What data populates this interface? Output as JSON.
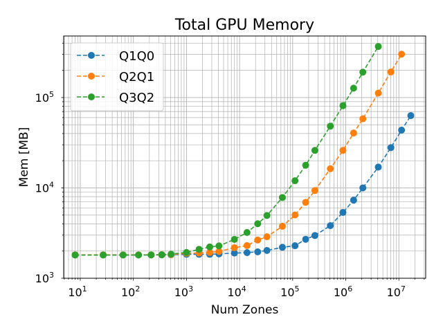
{
  "chart_data": {
    "type": "line",
    "title": "Total GPU Memory",
    "xlabel": "Num Zones",
    "ylabel": "Mem [MB]",
    "xscale": "log",
    "yscale": "log",
    "xlim": [
      4.87,
      32000000
    ],
    "ylim": [
      1000,
      480000
    ],
    "grid": {
      "major": true,
      "minor": true
    },
    "legend_position": "top-left",
    "x_ticks": [
      {
        "value": 10,
        "base": "10",
        "exp": "1"
      },
      {
        "value": 100,
        "base": "10",
        "exp": "2"
      },
      {
        "value": 1000,
        "base": "10",
        "exp": "3"
      },
      {
        "value": 10000,
        "base": "10",
        "exp": "4"
      },
      {
        "value": 100000,
        "base": "10",
        "exp": "5"
      },
      {
        "value": 1000000,
        "base": "10",
        "exp": "6"
      },
      {
        "value": 10000000,
        "base": "10",
        "exp": "7"
      }
    ],
    "y_ticks": [
      {
        "value": 1000,
        "base": "10",
        "exp": "3"
      },
      {
        "value": 10000,
        "base": "10",
        "exp": "4"
      },
      {
        "value": 100000,
        "base": "10",
        "exp": "5"
      }
    ],
    "series": [
      {
        "name": "Q1Q0",
        "color": "#1f77b4",
        "x": [
          8,
          27,
          64,
          125,
          216,
          343,
          512,
          1000,
          1728,
          2744,
          4096,
          8000,
          13824,
          21952,
          32768,
          64000,
          110592,
          175616,
          262144,
          512000,
          884736,
          1404928,
          2097152,
          4096000,
          7077888,
          11239424,
          16777216
        ],
        "y": [
          1810,
          1810,
          1810,
          1810,
          1810,
          1815,
          1820,
          1840,
          1840,
          1840,
          1860,
          1900,
          1920,
          1960,
          2030,
          2200,
          2290,
          2700,
          2970,
          3820,
          5350,
          7310,
          10000,
          17000,
          27900,
          43600,
          63100
        ]
      },
      {
        "name": "Q2Q1",
        "color": "#ff7f0e",
        "x": [
          8,
          27,
          64,
          125,
          216,
          343,
          512,
          1000,
          1728,
          2744,
          4096,
          8000,
          13824,
          21952,
          32768,
          64000,
          110592,
          175616,
          262144,
          512000,
          884736,
          1404928,
          2097152,
          4096000,
          7077888,
          11239424
        ],
        "y": [
          1815,
          1815,
          1815,
          1815,
          1815,
          1820,
          1830,
          1890,
          1900,
          1930,
          1980,
          2180,
          2300,
          2650,
          2880,
          3760,
          5010,
          6920,
          9350,
          16300,
          26000,
          40500,
          58200,
          112000,
          192000,
          302000
        ]
      },
      {
        "name": "Q3Q2",
        "color": "#2ca02c",
        "x": [
          8,
          27,
          64,
          125,
          216,
          343,
          512,
          1000,
          1728,
          2744,
          4096,
          8000,
          13824,
          21952,
          32768,
          64000,
          110592,
          175616,
          262144,
          512000,
          884736,
          1404928,
          2097152,
          4096000
        ],
        "y": [
          1810,
          1810,
          1810,
          1810,
          1815,
          1820,
          1850,
          1930,
          2090,
          2220,
          2280,
          2690,
          3210,
          4010,
          4950,
          7830,
          12000,
          17800,
          26000,
          48200,
          81300,
          127000,
          191000,
          367000
        ]
      }
    ]
  }
}
